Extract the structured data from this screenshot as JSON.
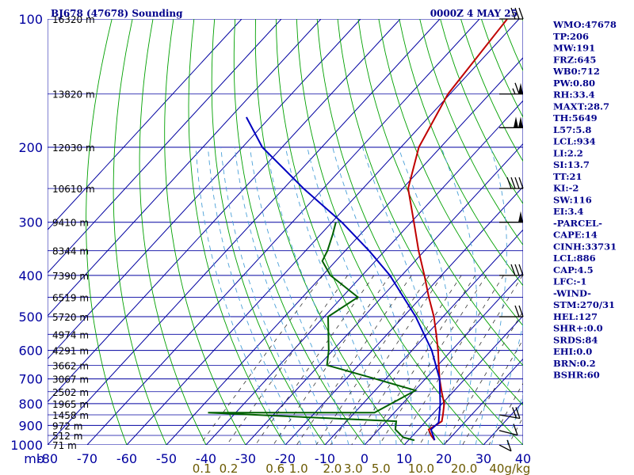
{
  "header": {
    "title_left": "BJ678 (47678) Sounding",
    "title_right": "0000Z  4 MAY 25"
  },
  "indices": [
    "WMO:47678",
    "TP:206",
    "MW:191",
    "FRZ:645",
    "WB0:712",
    "PW:0.80",
    "RH:33.4",
    "MAXT:28.7",
    "TH:5649",
    "L57:5.8",
    "LCL:934",
    "LI:2.2",
    "SI:13.7",
    "TT:21",
    "KI:-2",
    "SW:116",
    "EI:3.4",
    "-PARCEL-",
    "CAPE:14",
    "CINH:33731",
    "LCL:886",
    "CAP:4.5",
    "LFC:-1",
    "-WIND-",
    "STM:270/31",
    "HEL:127",
    "SHR+:0.0",
    "SRDS:84",
    "EHI:0.0",
    "BRN:0.2",
    "BSHR:60"
  ],
  "colors": {
    "grid": "#0000a0",
    "dry_adiabat": "#00a000",
    "moist_adiabat": "#4aa0d8",
    "mixing_ratio": "#333333",
    "temperature": "#c00000",
    "dewpoint": "#006000",
    "parcel": "#0000c0"
  },
  "chart_data": {
    "type": "skew-t",
    "pressure_axis": {
      "label": "mb",
      "scale": "log",
      "ticks": [
        "100",
        "200",
        "300",
        "400",
        "500",
        "600",
        "700",
        "800",
        "900",
        "1000"
      ],
      "tick_values": [
        100,
        200,
        300,
        400,
        500,
        600,
        700,
        800,
        900,
        1000
      ],
      "range": [
        100,
        1000
      ]
    },
    "temperature_axis": {
      "ticks": [
        "-80",
        "-70",
        "-60",
        "-50",
        "-40",
        "-30",
        "-20",
        "-10",
        "0",
        "10",
        "20",
        "30",
        "40"
      ],
      "range": [
        -80,
        40
      ]
    },
    "mixing_ratio_axis": {
      "unit": "g/kg",
      "ticks": [
        "0.1",
        "0.2",
        "0.6",
        "1.0",
        "2.0",
        "3.0",
        "5.0",
        "10.0",
        "20.0",
        "40"
      ]
    },
    "height_labels": [
      {
        "p": 100,
        "label": "16320 m"
      },
      {
        "p": 150,
        "label": "13820 m"
      },
      {
        "p": 200,
        "label": "12030 m"
      },
      {
        "p": 250,
        "label": "10610 m"
      },
      {
        "p": 300,
        "label": "9410 m"
      },
      {
        "p": 350,
        "label": "8344 m"
      },
      {
        "p": 400,
        "label": "7390 m"
      },
      {
        "p": 450,
        "label": "6519 m"
      },
      {
        "p": 500,
        "label": "5720 m"
      },
      {
        "p": 550,
        "label": "4974 m"
      },
      {
        "p": 600,
        "label": "4291 m"
      },
      {
        "p": 650,
        "label": "3662 m"
      },
      {
        "p": 700,
        "label": "3067 m"
      },
      {
        "p": 750,
        "label": "2502 m"
      },
      {
        "p": 800,
        "label": "1965 m"
      },
      {
        "p": 850,
        "label": "1458 m"
      },
      {
        "p": 900,
        "label": "972 m"
      },
      {
        "p": 950,
        "label": "512 m"
      },
      {
        "p": 1000,
        "label": "71 m"
      }
    ],
    "series": [
      {
        "kind": "temperature",
        "points": [
          {
            "p": 100,
            "t": -63.0
          },
          {
            "p": 150,
            "t": -60.5
          },
          {
            "p": 200,
            "t": -55.5
          },
          {
            "p": 250,
            "t": -48.6
          },
          {
            "p": 300,
            "t": -39.3
          },
          {
            "p": 350,
            "t": -31.5
          },
          {
            "p": 400,
            "t": -24.3
          },
          {
            "p": 450,
            "t": -18.1
          },
          {
            "p": 500,
            "t": -12.3
          },
          {
            "p": 550,
            "t": -7.6
          },
          {
            "p": 600,
            "t": -3.4
          },
          {
            "p": 650,
            "t": 0.2
          },
          {
            "p": 700,
            "t": 3.6
          },
          {
            "p": 750,
            "t": 7.1
          },
          {
            "p": 800,
            "t": 10.5
          },
          {
            "p": 850,
            "t": 12.8
          },
          {
            "p": 880,
            "t": 14.0
          },
          {
            "p": 900,
            "t": 13.4
          },
          {
            "p": 920,
            "t": 12.6
          },
          {
            "p": 950,
            "t": 14.6
          },
          {
            "p": 975,
            "t": 16.6
          }
        ]
      },
      {
        "kind": "dewpoint",
        "points": [
          {
            "p": 300,
            "t": -59.0
          },
          {
            "p": 320,
            "t": -57.0
          },
          {
            "p": 350,
            "t": -54.5
          },
          {
            "p": 370,
            "t": -53.4
          },
          {
            "p": 400,
            "t": -48.0
          },
          {
            "p": 450,
            "t": -36.0
          },
          {
            "p": 500,
            "t": -39.0
          },
          {
            "p": 600,
            "t": -31.0
          },
          {
            "p": 650,
            "t": -28.0
          },
          {
            "p": 700,
            "t": -12.5
          },
          {
            "p": 745,
            "t": 0.2
          },
          {
            "p": 840,
            "t": -5.0
          },
          {
            "p": 840,
            "t": -47.0
          },
          {
            "p": 880,
            "t": 2.5
          },
          {
            "p": 920,
            "t": 4.2
          },
          {
            "p": 960,
            "t": 8.0
          },
          {
            "p": 975,
            "t": 11.5
          }
        ]
      },
      {
        "kind": "parcel",
        "points": [
          {
            "p": 170,
            "t": -106.0
          },
          {
            "p": 200,
            "t": -95.0
          },
          {
            "p": 250,
            "t": -75.0
          },
          {
            "p": 300,
            "t": -57.5
          },
          {
            "p": 350,
            "t": -44.0
          },
          {
            "p": 400,
            "t": -33.0
          },
          {
            "p": 500,
            "t": -16.9
          },
          {
            "p": 600,
            "t": -5.0
          },
          {
            "p": 700,
            "t": 3.6
          },
          {
            "p": 800,
            "t": 9.5
          },
          {
            "p": 886,
            "t": 13.5
          },
          {
            "p": 920,
            "t": 13.2
          },
          {
            "p": 975,
            "t": 16.6
          }
        ]
      }
    ],
    "wind_barbs": [
      {
        "p": 100,
        "dir": 270,
        "speed": 30
      },
      {
        "p": 150,
        "dir": 270,
        "speed": 65
      },
      {
        "p": 180,
        "dir": 270,
        "speed": 100
      },
      {
        "p": 250,
        "dir": 270,
        "speed": 40
      },
      {
        "p": 300,
        "dir": 270,
        "speed": 50
      },
      {
        "p": 400,
        "dir": 270,
        "speed": 30
      },
      {
        "p": 500,
        "dir": 270,
        "speed": 20
      },
      {
        "p": 850,
        "dir": 300,
        "speed": 20
      },
      {
        "p": 925,
        "dir": 310,
        "speed": 10
      },
      {
        "p": 1000,
        "dir": 330,
        "speed": 10
      }
    ],
    "grid": true
  }
}
